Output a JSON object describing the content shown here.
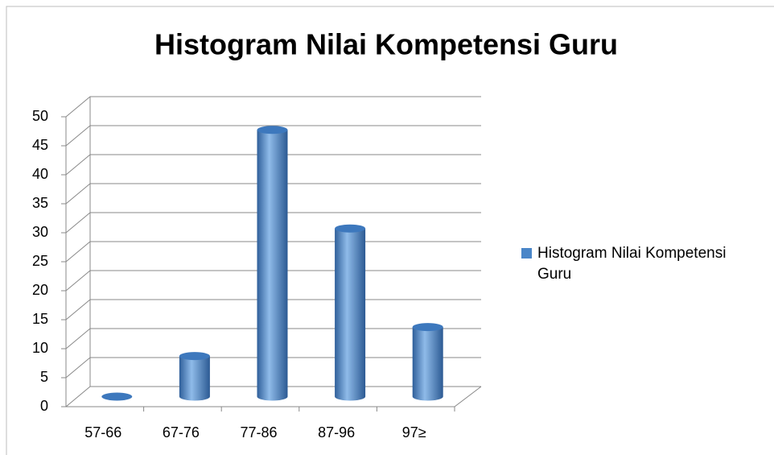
{
  "chart_data": {
    "type": "bar3d",
    "title": "Histogram Nilai Kompetensi Guru",
    "categories": [
      "57-66",
      "67-76",
      "77-86",
      "87-96",
      "97≥"
    ],
    "series": [
      {
        "name": "Histogram Nilai Kompetensi Guru",
        "color": "#4a86c8",
        "values": [
          0,
          7,
          46,
          29,
          12
        ]
      }
    ],
    "ylim": [
      0,
      50
    ],
    "yticks": [
      0,
      5,
      10,
      15,
      20,
      25,
      30,
      35,
      40,
      45,
      50
    ],
    "grid": true,
    "legend": "right"
  }
}
